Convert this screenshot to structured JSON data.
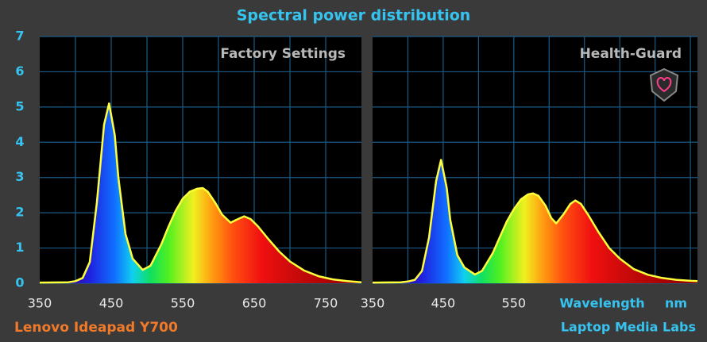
{
  "title": "Spectral power distribution",
  "footer_left": "Lenovo Ideapad Y700",
  "footer_right": "Laptop Media Labs",
  "chart_data": [
    {
      "type": "area",
      "annotation": "Factory Settings",
      "line_color": "#ffff3c",
      "x": [
        350,
        390,
        400,
        410,
        420,
        430,
        440,
        447,
        455,
        460,
        470,
        480,
        494,
        505,
        520,
        530,
        540,
        550,
        560,
        570,
        578,
        585,
        595,
        605,
        617,
        625,
        636,
        645,
        655,
        670,
        685,
        700,
        720,
        740,
        760,
        780,
        800
      ],
      "values": [
        0.02,
        0.03,
        0.06,
        0.15,
        0.6,
        2.3,
        4.5,
        5.1,
        4.2,
        3.0,
        1.4,
        0.7,
        0.38,
        0.5,
        1.1,
        1.6,
        2.05,
        2.4,
        2.6,
        2.68,
        2.7,
        2.6,
        2.3,
        1.95,
        1.72,
        1.8,
        1.9,
        1.82,
        1.62,
        1.25,
        0.9,
        0.62,
        0.36,
        0.2,
        0.11,
        0.06,
        0.03
      ],
      "xlim": [
        350,
        800
      ],
      "ylim": [
        0,
        7
      ],
      "xticks": [
        350,
        450,
        550,
        650,
        750
      ],
      "yticks": [
        0,
        1,
        2,
        3,
        4,
        5,
        6,
        7
      ]
    },
    {
      "type": "area",
      "annotation": "Health-Guard",
      "line_color": "#ffff3c",
      "xlabel": "Wavelength",
      "xunit": "nm",
      "x": [
        350,
        390,
        400,
        410,
        420,
        430,
        440,
        447,
        455,
        460,
        470,
        480,
        495,
        505,
        520,
        530,
        540,
        550,
        560,
        570,
        577,
        585,
        595,
        603,
        610,
        620,
        630,
        637,
        645,
        655,
        670,
        685,
        700,
        720,
        740,
        760,
        780,
        800,
        810
      ],
      "values": [
        0.02,
        0.03,
        0.05,
        0.1,
        0.35,
        1.3,
        2.9,
        3.5,
        2.7,
        1.8,
        0.8,
        0.45,
        0.25,
        0.35,
        0.85,
        1.3,
        1.75,
        2.1,
        2.38,
        2.52,
        2.55,
        2.48,
        2.2,
        1.85,
        1.7,
        1.95,
        2.25,
        2.35,
        2.25,
        1.95,
        1.45,
        1.0,
        0.7,
        0.4,
        0.24,
        0.15,
        0.1,
        0.07,
        0.06
      ],
      "xlim": [
        350,
        810
      ],
      "ylim": [
        0,
        7
      ],
      "xticks": [
        350,
        450,
        550
      ]
    }
  ]
}
